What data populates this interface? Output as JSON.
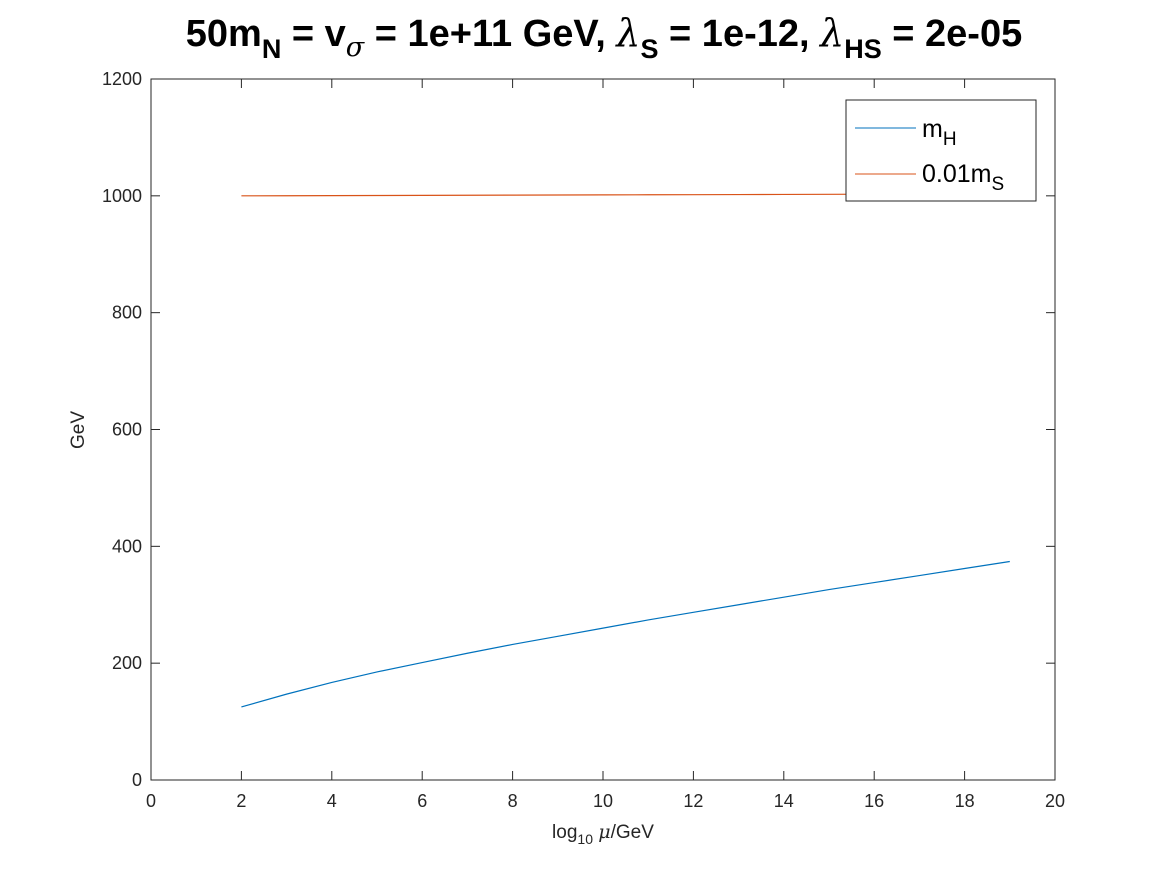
{
  "chart_data": {
    "type": "line",
    "title": {
      "prefix": "50m",
      "sub_n": "N",
      "part_eq1": " = v",
      "sigma": "σ",
      "part_rest1": " = 1e+11 GeV, ",
      "lambda1": "λ",
      "sub_s": "S",
      "part_rest2": " = 1e-12, ",
      "lambda2": "λ",
      "sub_hs": "HS",
      "part_rest3": " = 2e-05"
    },
    "xlabel": {
      "pre": "log",
      "sub": "10",
      "mu": "μ",
      "post": "/GeV"
    },
    "ylabel": "GeV",
    "xlim": [
      0,
      20
    ],
    "ylim": [
      0,
      1200
    ],
    "xticks": [
      0,
      2,
      4,
      6,
      8,
      10,
      12,
      14,
      16,
      18,
      20
    ],
    "yticks": [
      0,
      200,
      400,
      600,
      800,
      1000,
      1200
    ],
    "grid": false,
    "legend_position": "top-right",
    "series": [
      {
        "name_main": "m",
        "name_sub": "H",
        "color": "#0072BD",
        "x": [
          2,
          3,
          4,
          5,
          6,
          7,
          8,
          9,
          10,
          11,
          12,
          13,
          14,
          15,
          16,
          17,
          18,
          19
        ],
        "y": [
          125,
          147,
          167,
          185,
          201,
          217,
          232,
          246,
          260,
          274,
          287,
          300,
          313,
          326,
          338,
          350,
          362,
          374
        ]
      },
      {
        "name_main": "0.01m",
        "name_sub": "S",
        "color": "#D95319",
        "x": [
          2,
          3,
          4,
          5,
          6,
          7,
          8,
          9,
          10,
          11,
          12,
          13,
          14,
          15,
          16,
          17,
          18,
          19
        ],
        "y": [
          1000,
          1000.2,
          1000.4,
          1000.6,
          1000.8,
          1001,
          1001.2,
          1001.4,
          1001.6,
          1001.8,
          1002,
          1002.2,
          1002.4,
          1002.6,
          1002.8,
          1003,
          1003.2,
          1003.4
        ]
      }
    ]
  }
}
